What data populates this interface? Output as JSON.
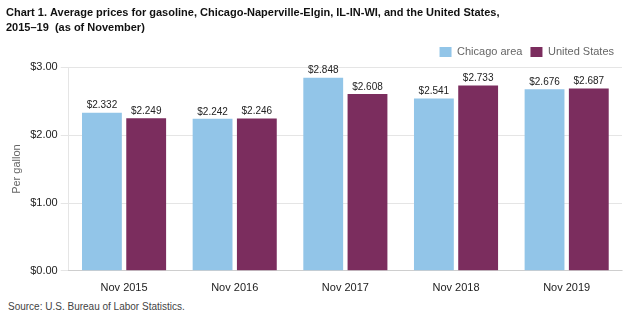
{
  "chart_data": {
    "type": "bar",
    "title": "Chart 1. Average prices for gasoline, Chicago-Naperville-Elgin, IL-IN-WI, and the United States,",
    "subtitle": "2015–19  (as of November)",
    "ylabel": "Per gallon",
    "annotations": [
      "Source: U.S. Bureau of Labor Statistics."
    ],
    "categories": [
      "Nov 2015",
      "Nov 2016",
      "Nov 2017",
      "Nov 2018",
      "Nov 2019"
    ],
    "series": [
      {
        "name": "Chicago area",
        "color": "#92C5E8",
        "values": [
          2.332,
          2.242,
          2.848,
          2.541,
          2.676
        ],
        "value_labels": [
          "$2.332",
          "$2.242",
          "$2.848",
          "$2.541",
          "$2.676"
        ]
      },
      {
        "name": "United States",
        "color": "#7B2D5E",
        "values": [
          2.249,
          2.246,
          2.608,
          2.733,
          2.687
        ],
        "value_labels": [
          "$2.249",
          "$2.246",
          "$2.608",
          "$2.733",
          "$2.687"
        ]
      }
    ],
    "ylim": [
      0.0,
      3.0
    ],
    "yticks": [
      {
        "value": 0.0,
        "label": "$0.00"
      },
      {
        "value": 1.0,
        "label": "$1.00"
      },
      {
        "value": 2.0,
        "label": "$2.00"
      },
      {
        "value": 3.0,
        "label": "$3.00"
      }
    ],
    "grid": true,
    "legend": "upper right",
    "data_labels": true
  }
}
